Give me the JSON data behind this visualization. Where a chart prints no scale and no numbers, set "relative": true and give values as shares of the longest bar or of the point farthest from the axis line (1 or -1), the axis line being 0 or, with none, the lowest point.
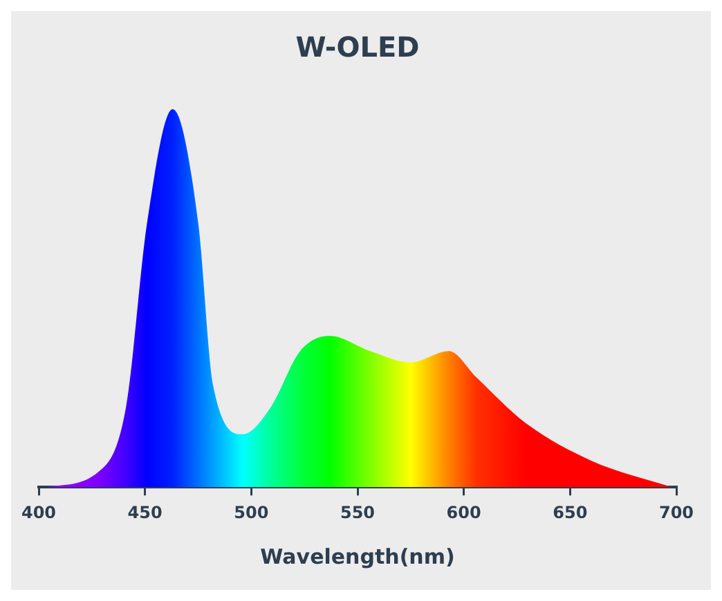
{
  "chart_data": {
    "type": "area",
    "title": "W-OLED",
    "xlabel": "Wavelength(nm)",
    "relative": true,
    "x": [
      404,
      428,
      441,
      451,
      463,
      475,
      482,
      496,
      509,
      523,
      537,
      556,
      575,
      593,
      606,
      629,
      660,
      698
    ],
    "values": [
      0,
      0.04,
      0.21,
      0.7,
      1,
      0.7,
      0.27,
      0.14,
      0.21,
      0.36,
      0.4,
      0.36,
      0.33,
      0.36,
      0.29,
      0.17,
      0.07,
      0
    ],
    "colors": [
      "#a000ff",
      "#8000ff",
      "#4000ff",
      "#0000ff",
      "#0020ff",
      "#0070ff",
      "#00a0ff",
      "#00ffff",
      "#00ff99",
      "#00ff40",
      "#00ff00",
      "#80ff00",
      "#ffff00",
      "#ff8000",
      "#ff3000",
      "#ff0000",
      "#ff0000",
      "#ff0000"
    ],
    "xlim": [
      400,
      700
    ],
    "xticks": [
      400,
      450,
      500,
      550,
      600,
      650,
      700
    ],
    "grid": false,
    "legend": false
  }
}
